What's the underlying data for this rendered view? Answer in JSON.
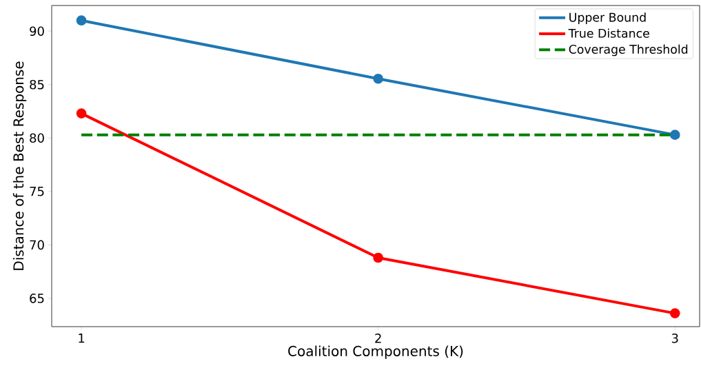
{
  "chart_data": {
    "type": "line",
    "xlabel": "Coalition Components (K)",
    "ylabel": "Distance of the Best Response",
    "x": [
      1,
      2,
      3
    ],
    "series": [
      {
        "name": "Upper Bound",
        "color": "#1f77b4",
        "values": [
          91.0,
          85.55,
          80.3
        ],
        "marker": "circle",
        "line_style": "solid"
      },
      {
        "name": "True Distance",
        "color": "#ff0000",
        "values": [
          82.3,
          68.8,
          63.6
        ],
        "marker": "circle",
        "line_style": "solid"
      },
      {
        "name": "Coverage Threshold",
        "color": "#008000",
        "values": [
          80.3,
          80.3,
          80.3
        ],
        "marker": "none",
        "line_style": "dashed"
      }
    ],
    "xlim": [
      0.9,
      3.083
    ],
    "ylim": [
      62.35,
      92.4
    ],
    "xticks": [
      1,
      2,
      3
    ],
    "yticks": [
      65,
      70,
      75,
      80,
      85,
      90
    ],
    "grid": false,
    "legend": "top right"
  }
}
